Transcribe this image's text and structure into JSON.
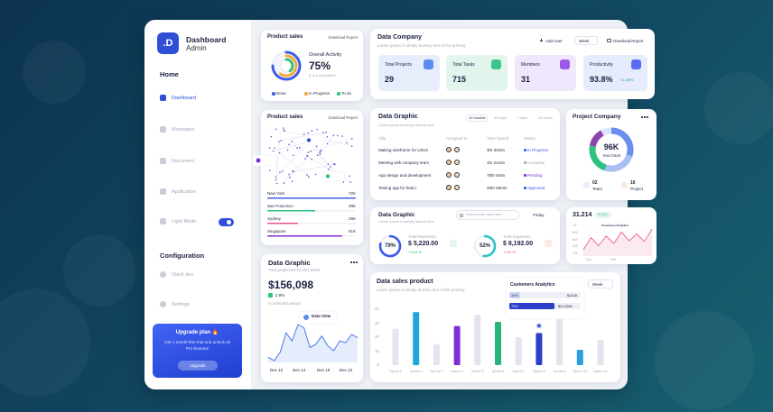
{
  "sidebar": {
    "logo": ".D",
    "brand": "Dashboard",
    "role": "Admin",
    "home": "Home",
    "menu": [
      "Dashboard",
      "Messages",
      "Document",
      "Application",
      "Light Mode"
    ],
    "config": "Configuration",
    "config_menu": [
      "Stack dev",
      "Settings"
    ],
    "upgrade": {
      "title": "Upgrade plan 🔥",
      "text": "Get 1 month free trial and unlock all Pro features",
      "button": "Upgrade"
    }
  },
  "product_sales": {
    "title": "Product sales",
    "action": "Download Report",
    "label": "Overall Activity",
    "percent": 75,
    "percent_label": "75%",
    "note": "5 of 6 completed",
    "legend": [
      "Done",
      "In Progress",
      "To do"
    ]
  },
  "product_map": {
    "title": "Product sales",
    "action": "Download Report",
    "cities": [
      {
        "name": "New York",
        "value": 72,
        "label": "72K"
      },
      {
        "name": "San Francisco",
        "value": 39,
        "label": "39K"
      },
      {
        "name": "Sydney",
        "value": 25,
        "label": "25K"
      },
      {
        "name": "Singapore",
        "value": 61,
        "label": "61K"
      }
    ]
  },
  "revenue": {
    "title": "Data Graphic",
    "subtitle": "Your project list for this week",
    "amount": "$156,098",
    "change": "2.9%",
    "period": "In selected period",
    "tooltip": "Data View",
    "values": [
      40,
      38,
      43,
      55,
      50,
      60,
      58,
      46,
      48,
      53,
      47,
      44,
      50,
      49,
      54,
      52
    ],
    "x_labels": [
      "Dec 10",
      "Dec 14",
      "Dec 18",
      "Dec 22"
    ]
  },
  "company": {
    "title": "Data Company",
    "subtitle": "Lorem ipsum is simply dummy text of the printing",
    "buttons": [
      "Add User",
      "Week",
      "Download Report"
    ],
    "stats": [
      {
        "label": "Total Projects",
        "value": "29"
      },
      {
        "label": "Total Tasks",
        "value": "715"
      },
      {
        "label": "Members",
        "value": "31"
      },
      {
        "label": "Productivity",
        "value": "93.8%",
        "change": "+1.43%"
      }
    ]
  },
  "tasks": {
    "title": "Data Graphic",
    "subtitle": "Lorem ipsum is simply dummy text",
    "tabs": [
      "12 months",
      "30 days",
      "7 days",
      "24 hours"
    ],
    "columns": [
      "Title",
      "Assigned to",
      "Time Spend",
      "Status"
    ],
    "rows": [
      [
        "Making wireframe for UI/UX",
        "3hr 20min",
        "In Progress"
      ],
      [
        "Meeting with company team",
        "1hr 21min",
        "Complete"
      ],
      [
        "App design and development",
        "78hr 5min",
        "Pending"
      ],
      [
        "Testing app for beta t",
        "26hr 50min",
        "Approved"
      ]
    ]
  },
  "project": {
    "title": "Project Company",
    "value": "96K",
    "label": "Your track",
    "team": {
      "value": "02",
      "label": "Team"
    },
    "projects": {
      "value": "16",
      "label": "Project"
    }
  },
  "finance": {
    "title": "Data Graphic",
    "subtitle": "Lorem ipsum is simply dummy text",
    "search": "Search your data here...",
    "day": "Friday",
    "items": [
      {
        "percent": 79,
        "percent_label": "79%",
        "label": "Total Payments",
        "value": "$ 5,220.00",
        "change": "+3.64 %"
      },
      {
        "percent": 52,
        "percent_label": "52%",
        "label": "Total Expenses",
        "value": "$ 8,192.00",
        "change": "-0.03 %"
      }
    ]
  },
  "customers": {
    "value": "31.214",
    "change": "+1.3%",
    "tooltip": "Customers Analytics",
    "ylim": [
      120,
      1060
    ],
    "yticks": [
      {
        "value": 1000,
        "label": "1K"
      },
      800,
      600,
      400,
      200
    ],
    "values": [
      300,
      650,
      420,
      700,
      480,
      820,
      560,
      760,
      540,
      900
    ],
    "x_labels": [
      "Jan",
      "Feb"
    ]
  },
  "sales": {
    "title": "Data sales product",
    "subtitle": "Lorem ipsum is simply dummy text of the printing",
    "period": "Week",
    "tooltip": {
      "title": "Customers Analytics",
      "rows": [
        [
          "10%",
          "$16.5k"
        ],
        [
          "75%",
          "$21,456k"
        ]
      ]
    },
    "ylim": [
      0,
      40
    ],
    "yticks": [
      0,
      10,
      20,
      30,
      40
    ],
    "categories": [
      "Sprint 1",
      "Sprint 2",
      "Sprint 3",
      "Sprint 4",
      "Sprint 5",
      "Sprint 6",
      "Sprint 7",
      "Sprint 8",
      "Sprint 9",
      "Sprint 10",
      "Sprint 11"
    ],
    "values": [
      26,
      38,
      15,
      28,
      36,
      31,
      20,
      23,
      38,
      11,
      18
    ],
    "colors": [
      "#e2e5ee",
      "#1fa8d6",
      "#e2e5ee",
      "#7b2fd6",
      "#e2e5ee",
      "#27b37a",
      "#e2e5ee",
      "#2b3fc9",
      "#e2e5ee",
      "#2a9ee0",
      "#e2e5ee"
    ]
  }
}
